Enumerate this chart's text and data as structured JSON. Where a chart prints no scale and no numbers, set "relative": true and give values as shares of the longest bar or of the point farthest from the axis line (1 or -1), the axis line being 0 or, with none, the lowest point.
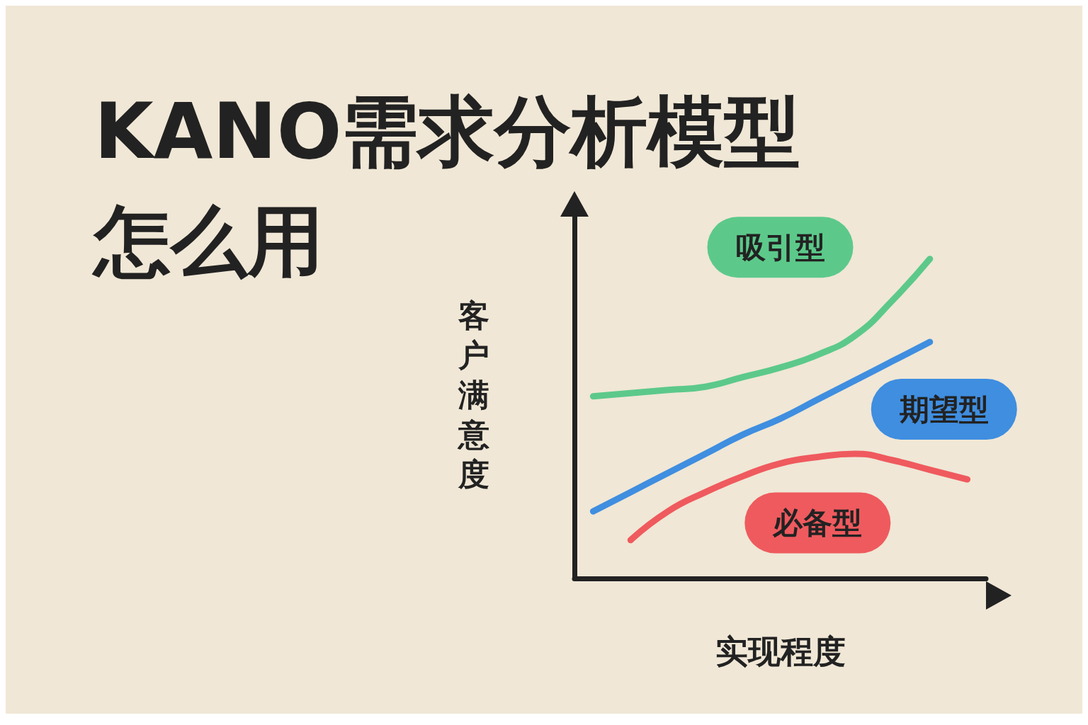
{
  "chart_data": {
    "type": "line",
    "title": "KANO需求分析模型怎么用",
    "xlabel": "实现程度",
    "ylabel": "客户满意度",
    "relative": true,
    "legend": false,
    "grid": false,
    "marker": "none",
    "categories": [
      null,
      null,
      null,
      null,
      null,
      null,
      null,
      null,
      null,
      null,
      null
    ],
    "series": [
      {
        "name": "吸引型",
        "color": "#5cc98a",
        "values": [
          0.57,
          0.58,
          0.59,
          0.6,
          0.63,
          0.66,
          0.7,
          0.76,
          0.87,
          1,
          null
        ]
      },
      {
        "name": "期望型",
        "color": "#3f8ee0",
        "values": [
          0.21,
          0.27,
          0.33,
          0.39,
          0.45,
          0.5,
          0.56,
          0.62,
          0.68,
          0.74,
          null
        ]
      },
      {
        "name": "必备型",
        "color": "#ef5a5e",
        "values": [
          null,
          0.12,
          0.21,
          0.27,
          0.32,
          0.36,
          0.38,
          0.39,
          0.37,
          0.34,
          0.31
        ]
      }
    ]
  }
}
